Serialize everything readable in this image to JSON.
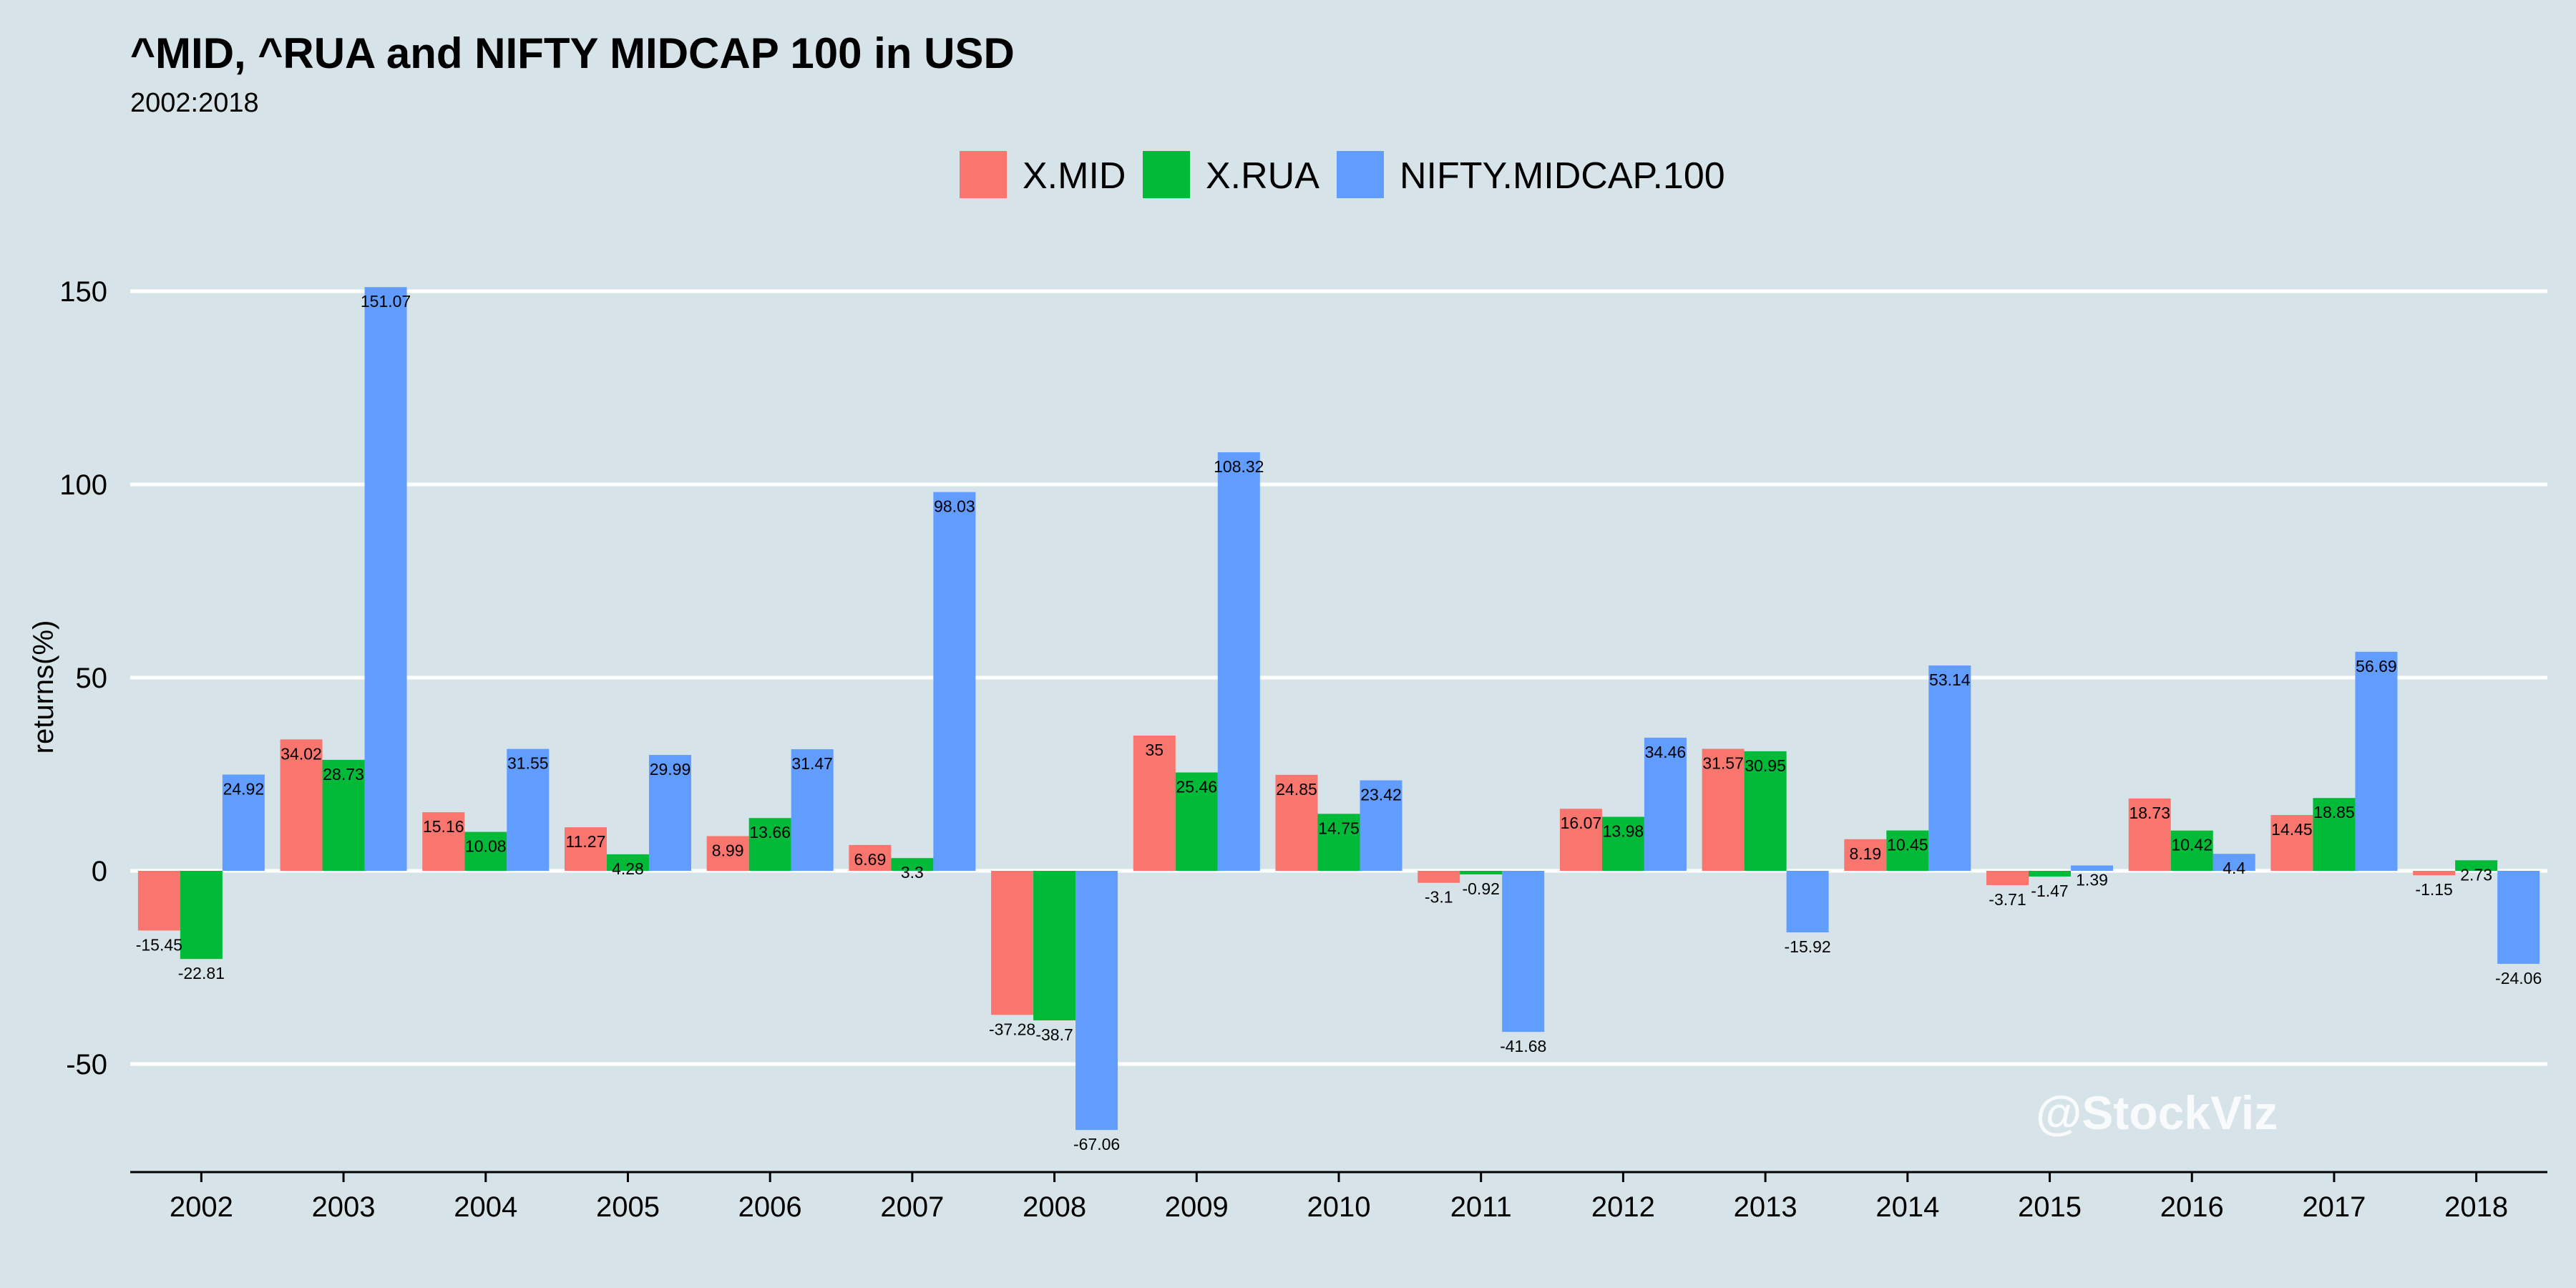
{
  "chart_data": {
    "type": "bar",
    "title": "^MID, ^RUA and NIFTY MIDCAP 100 in USD",
    "subtitle": "2002:2018",
    "xlabel": "",
    "ylabel": "returns(%)",
    "ylim": [
      -78,
      162
    ],
    "yticks": [
      -50,
      0,
      50,
      100,
      150
    ],
    "ytick_labels": [
      "-50",
      "0",
      "50",
      "100",
      "150"
    ],
    "grid": true,
    "legend_position": "top",
    "categories": [
      "2002",
      "2003",
      "2004",
      "2005",
      "2006",
      "2007",
      "2008",
      "2009",
      "2010",
      "2011",
      "2012",
      "2013",
      "2014",
      "2015",
      "2016",
      "2017",
      "2018"
    ],
    "series": [
      {
        "name": "X.MID",
        "color": "#f8766d",
        "values": [
          -15.45,
          34.02,
          15.16,
          11.27,
          8.99,
          6.69,
          -37.28,
          35,
          24.85,
          -3.1,
          16.07,
          31.57,
          8.19,
          -3.71,
          18.73,
          14.45,
          -1.15
        ]
      },
      {
        "name": "X.RUA",
        "color": "#00ba38",
        "values": [
          -22.81,
          28.73,
          10.08,
          4.28,
          13.66,
          3.3,
          -38.7,
          25.46,
          14.75,
          -0.92,
          13.98,
          30.95,
          10.45,
          -1.47,
          10.42,
          18.85,
          2.73
        ]
      },
      {
        "name": "NIFTY.MIDCAP.100",
        "color": "#619cff",
        "values": [
          24.92,
          151.07,
          31.55,
          29.99,
          31.47,
          98.03,
          -67.06,
          108.32,
          23.42,
          -41.68,
          34.46,
          -15.92,
          53.14,
          1.39,
          4.4,
          56.69,
          -24.06
        ]
      }
    ],
    "watermark": "@StockViz"
  },
  "colors": {
    "background": "#d6e4ea",
    "grid": "#ffffff",
    "axis": "#000000"
  }
}
